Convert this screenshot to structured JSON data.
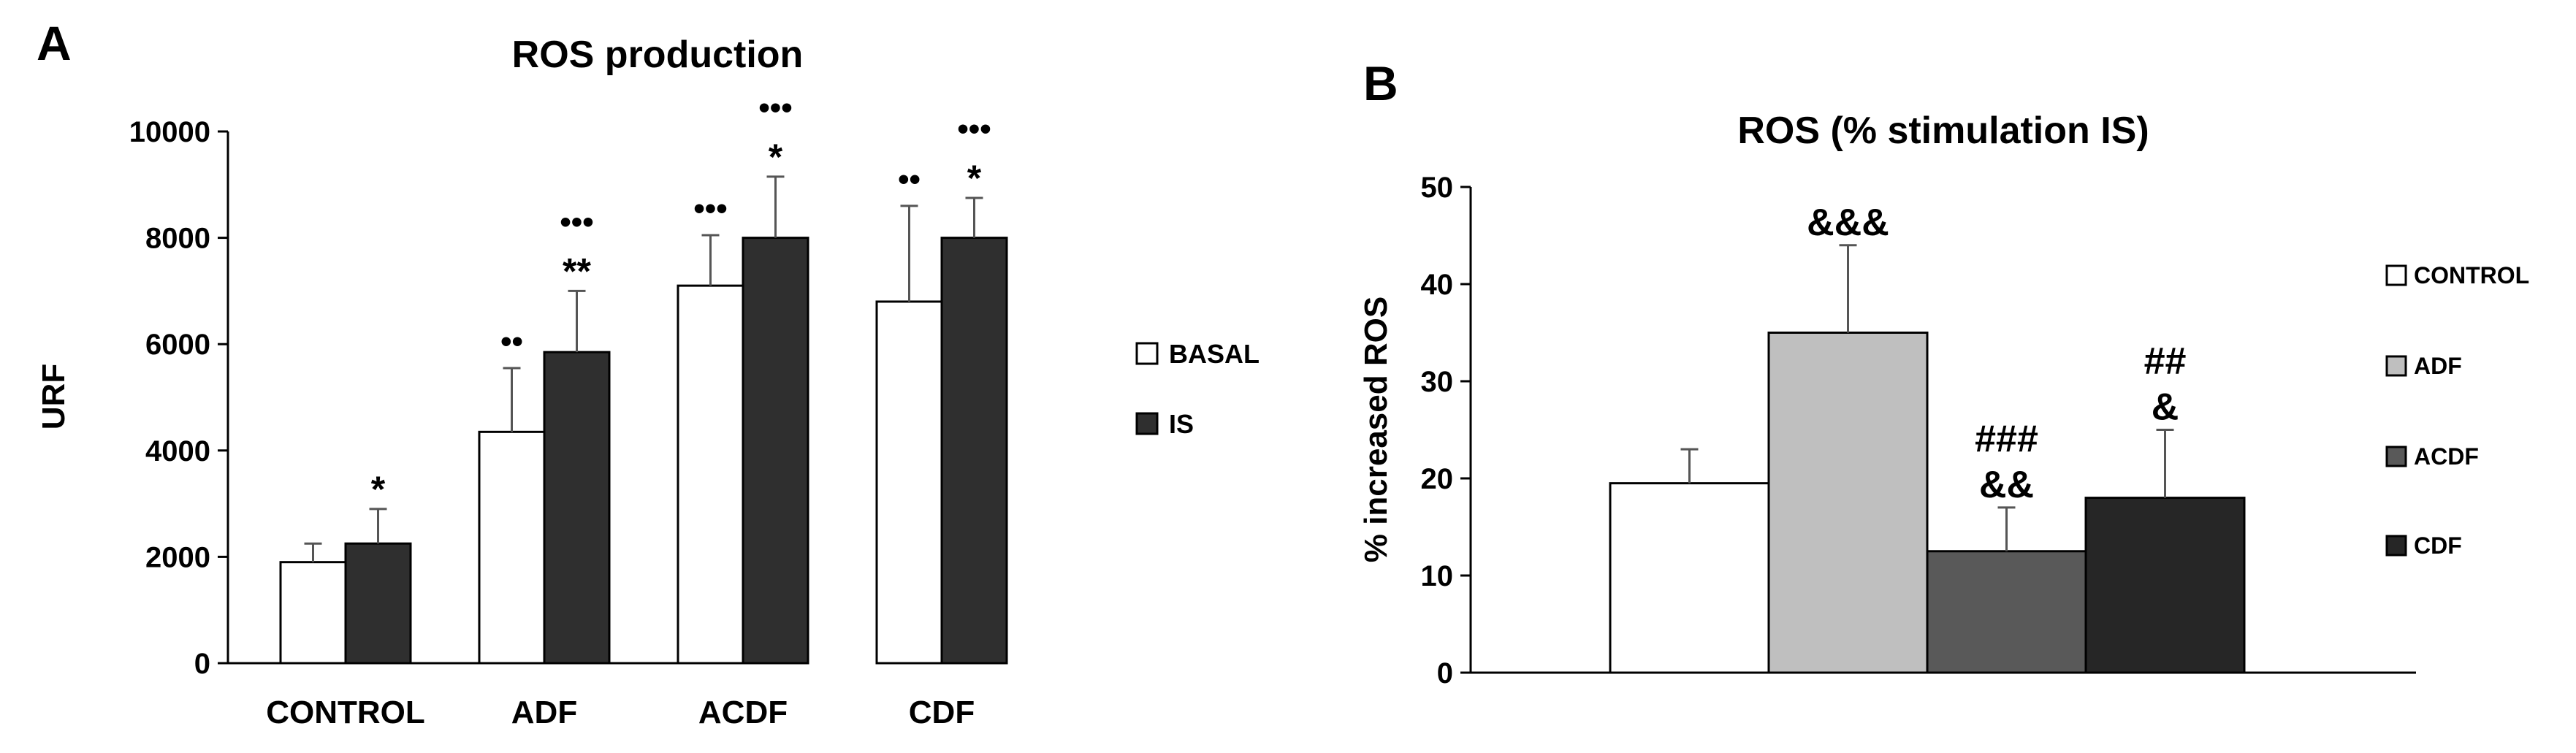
{
  "chart_data": [
    {
      "panel": "A",
      "type": "bar",
      "title": "ROS production",
      "xlabel": "",
      "ylabel": "URF",
      "ylim": [
        0,
        10000
      ],
      "yticks": [
        "0",
        "2000",
        "4000",
        "6000",
        "8000",
        "10000"
      ],
      "categories": [
        "CONTROL",
        "ADF",
        "ACDF",
        "CDF"
      ],
      "series": [
        {
          "name": "BASAL",
          "color": "#ffffff",
          "values": [
            1900,
            4350,
            7100,
            6800
          ],
          "errors": [
            350,
            1200,
            950,
            1800
          ]
        },
        {
          "name": "IS",
          "color": "#2f2f2f",
          "values": [
            2250,
            5850,
            8000,
            8000
          ],
          "errors": [
            650,
            1150,
            1150,
            750
          ]
        }
      ],
      "annotations": [
        {
          "category": "CONTROL",
          "series": "IS",
          "lines": [
            "*"
          ]
        },
        {
          "category": "ADF",
          "series": "BASAL",
          "lines": [
            "••"
          ]
        },
        {
          "category": "ADF",
          "series": "IS",
          "lines": [
            "•••",
            "**"
          ]
        },
        {
          "category": "ACDF",
          "series": "BASAL",
          "lines": [
            "•••"
          ]
        },
        {
          "category": "ACDF",
          "series": "IS",
          "lines": [
            "•••",
            "*"
          ]
        },
        {
          "category": "CDF",
          "series": "BASAL",
          "lines": [
            "••"
          ]
        },
        {
          "category": "CDF",
          "series": "IS",
          "lines": [
            "•••",
            "*"
          ]
        }
      ],
      "legend": [
        "BASAL",
        "IS"
      ],
      "legend_position": "right"
    },
    {
      "panel": "B",
      "type": "bar",
      "title": "ROS (% stimulation IS)",
      "xlabel": "",
      "ylabel": "% increased ROS",
      "ylim": [
        0,
        50
      ],
      "yticks": [
        "0",
        "10",
        "20",
        "30",
        "40",
        "50"
      ],
      "categories": [
        "CONTROL",
        "ADF",
        "ACDF",
        "CDF"
      ],
      "values": [
        19.5,
        35,
        12.5,
        18
      ],
      "errors": [
        3.5,
        9,
        4.5,
        7
      ],
      "colors": [
        "#ffffff",
        "#bfbfbf",
        "#595959",
        "#262626"
      ],
      "annotations": [
        {
          "category": "CONTROL",
          "lines": []
        },
        {
          "category": "ADF",
          "lines": [
            "&&&"
          ]
        },
        {
          "category": "ACDF",
          "lines": [
            "###",
            "&&"
          ]
        },
        {
          "category": "CDF",
          "lines": [
            "##",
            "&"
          ]
        }
      ],
      "legend": [
        "CONTROL",
        "ADF",
        "ACDF",
        "CDF"
      ],
      "legend_position": "right"
    }
  ]
}
